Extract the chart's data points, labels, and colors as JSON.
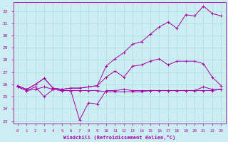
{
  "xlabel": "Windchill (Refroidissement éolien,°C)",
  "xlim": [
    -0.5,
    23.5
  ],
  "ylim": [
    22.8,
    32.7
  ],
  "yticks": [
    23,
    24,
    25,
    26,
    27,
    28,
    29,
    30,
    31,
    32
  ],
  "xticks": [
    0,
    1,
    2,
    3,
    4,
    5,
    6,
    7,
    8,
    9,
    10,
    11,
    12,
    13,
    14,
    15,
    16,
    17,
    18,
    19,
    20,
    21,
    22,
    23
  ],
  "bg_color": "#cceef2",
  "grid_color": "#aadddd",
  "line_color": "#aa00aa",
  "series": [
    {
      "name": "flat_bottom",
      "x": [
        0,
        1,
        2,
        3,
        4,
        5,
        6,
        7,
        8,
        9,
        10,
        11,
        12,
        13,
        14,
        15,
        16,
        17,
        18,
        19,
        20,
        21,
        22,
        23
      ],
      "y": [
        25.8,
        25.5,
        25.6,
        25.8,
        25.6,
        25.5,
        25.5,
        25.5,
        25.5,
        25.5,
        25.4,
        25.4,
        25.4,
        25.4,
        25.4,
        25.5,
        25.5,
        25.5,
        25.5,
        25.5,
        25.5,
        25.5,
        25.5,
        25.6
      ]
    },
    {
      "name": "dip_line",
      "x": [
        0,
        1,
        2,
        3,
        4,
        5,
        6,
        7,
        8,
        9,
        10,
        11,
        12,
        13,
        14,
        15,
        16,
        17,
        18,
        19,
        20,
        21,
        22,
        23
      ],
      "y": [
        25.8,
        25.5,
        25.8,
        25.0,
        25.6,
        25.5,
        25.5,
        23.1,
        24.5,
        24.4,
        25.5,
        25.5,
        25.6,
        25.5,
        25.5,
        25.5,
        25.5,
        25.5,
        25.5,
        25.5,
        25.5,
        25.8,
        25.6,
        25.6
      ]
    },
    {
      "name": "mid_rise",
      "x": [
        0,
        1,
        2,
        3,
        4,
        5,
        6,
        7,
        8,
        9,
        10,
        11,
        12,
        13,
        14,
        15,
        16,
        17,
        18,
        19,
        20,
        21,
        22,
        23
      ],
      "y": [
        25.9,
        25.6,
        26.0,
        26.5,
        25.7,
        25.6,
        25.7,
        25.7,
        25.8,
        25.9,
        26.6,
        27.1,
        26.6,
        27.5,
        27.6,
        27.9,
        28.1,
        27.6,
        27.9,
        27.9,
        27.9,
        27.7,
        26.6,
        25.9
      ]
    },
    {
      "name": "steep_rise",
      "x": [
        0,
        1,
        2,
        3,
        4,
        5,
        6,
        7,
        8,
        9,
        10,
        11,
        12,
        13,
        14,
        15,
        16,
        17,
        18,
        19,
        20,
        21,
        22,
        23
      ],
      "y": [
        25.9,
        25.6,
        26.0,
        26.5,
        25.7,
        25.6,
        25.7,
        25.7,
        25.8,
        25.9,
        27.5,
        28.1,
        28.6,
        29.3,
        29.5,
        30.1,
        30.7,
        31.1,
        30.6,
        31.7,
        31.6,
        32.4,
        31.8,
        31.6
      ]
    }
  ]
}
